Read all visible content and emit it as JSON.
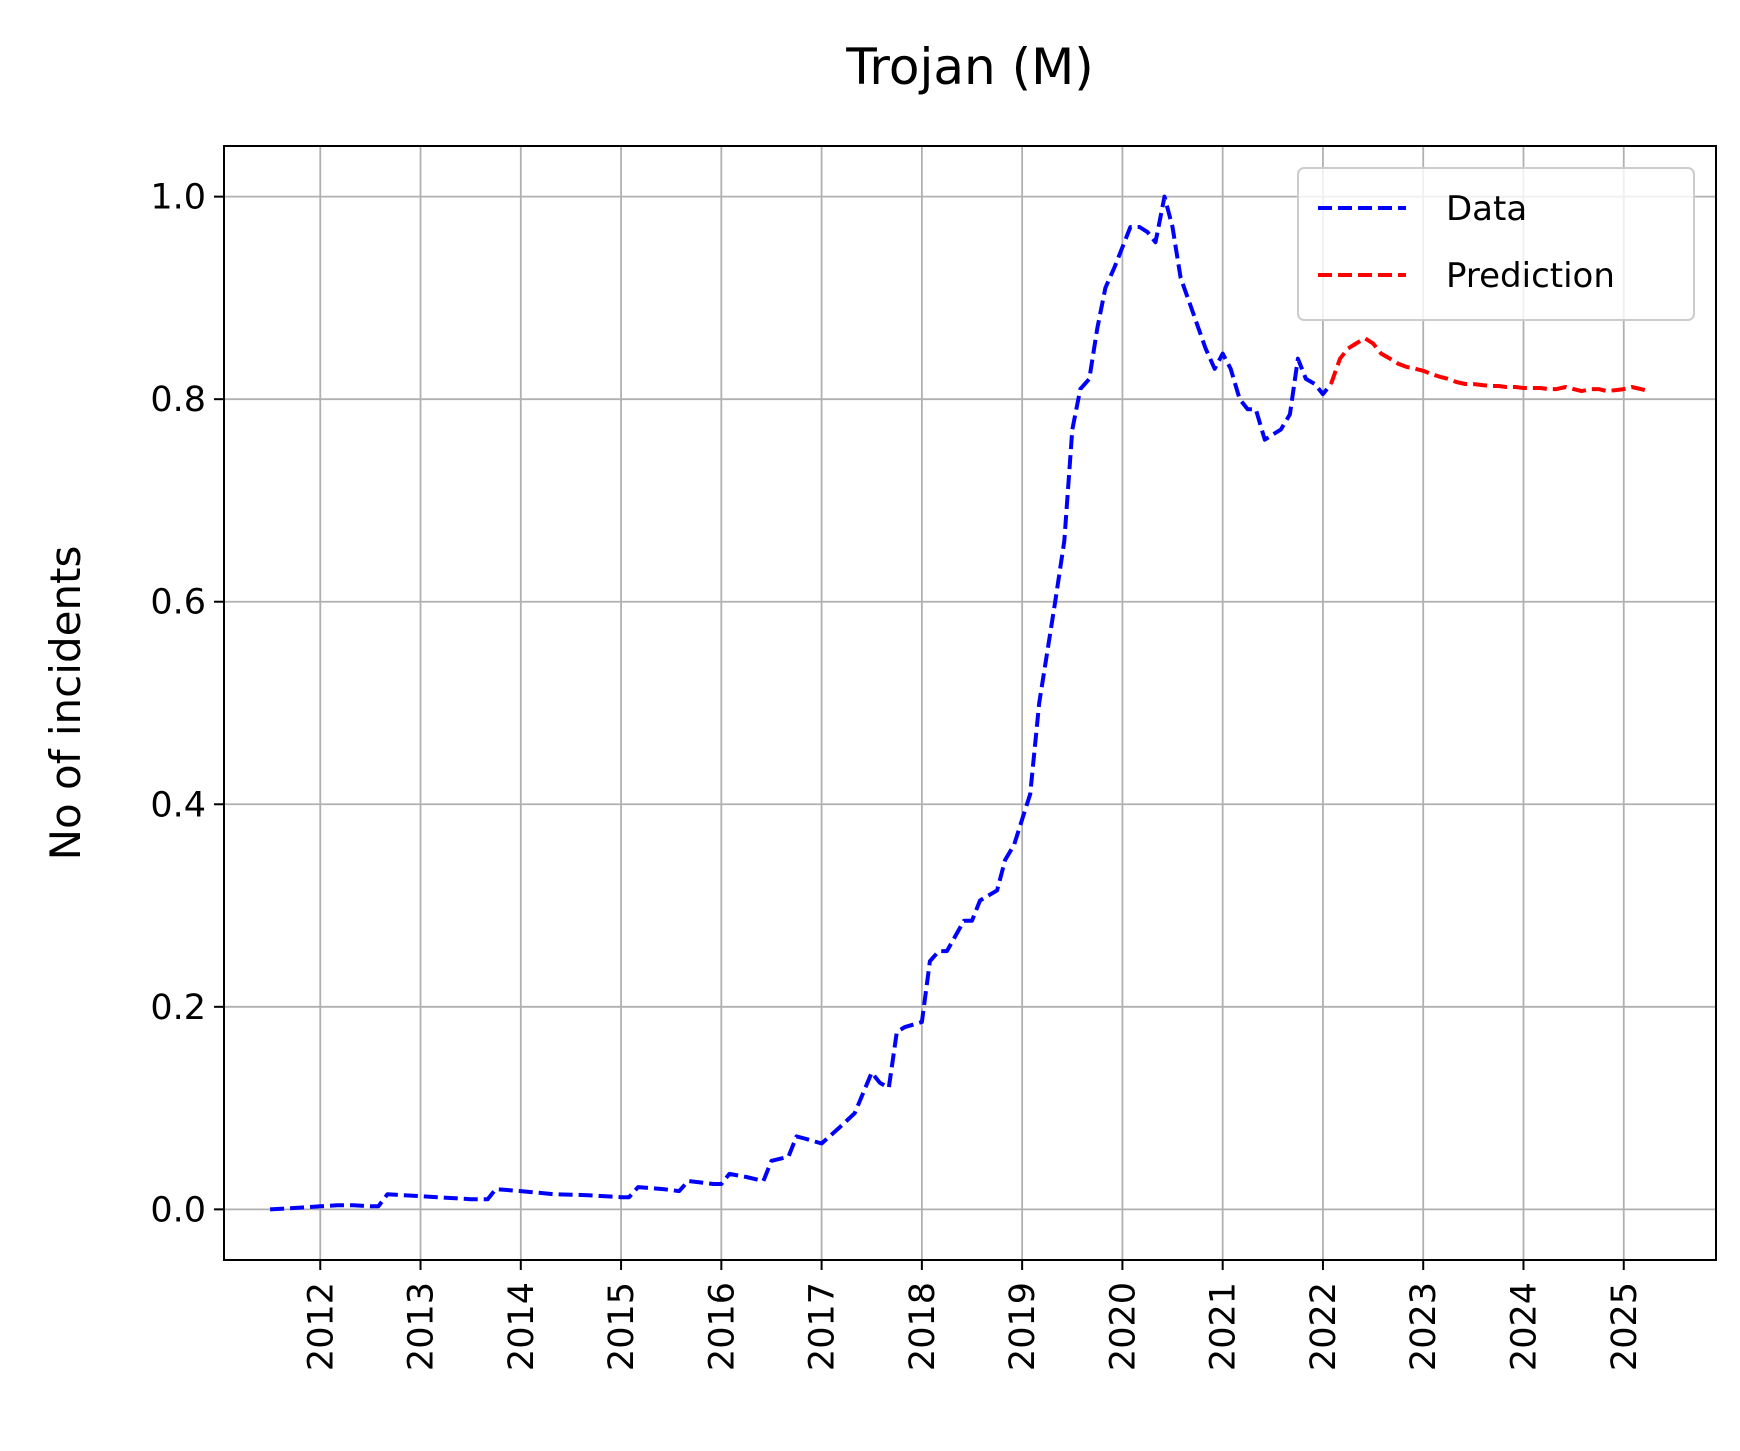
{
  "chart_data": {
    "type": "line",
    "title": "Trojan (M)",
    "xlabel": "",
    "ylabel": "No of incidents",
    "xlim": [
      2011.04,
      2025.92
    ],
    "ylim": [
      -0.05,
      1.05
    ],
    "x_ticks": [
      2012,
      2013,
      2014,
      2015,
      2016,
      2017,
      2018,
      2019,
      2020,
      2021,
      2022,
      2023,
      2024,
      2025
    ],
    "x_tick_labels": [
      "2012",
      "2013",
      "2014",
      "2015",
      "2016",
      "2017",
      "2018",
      "2019",
      "2020",
      "2021",
      "2022",
      "2023",
      "2024",
      "2025"
    ],
    "y_ticks": [
      0.0,
      0.2,
      0.4,
      0.6,
      0.8,
      1.0
    ],
    "y_tick_labels": [
      "0.0",
      "0.2",
      "0.4",
      "0.6",
      "0.8",
      "1.0"
    ],
    "grid": true,
    "legend": {
      "position": "top-right",
      "entries": [
        "Data",
        "Prediction"
      ]
    },
    "series": [
      {
        "name": "Data",
        "color": "#0000ff",
        "style": "dashed",
        "x": [
          2011.5,
          2011.67,
          2012.0,
          2012.17,
          2012.33,
          2012.5,
          2012.58,
          2012.67,
          2012.83,
          2013.17,
          2013.5,
          2013.67,
          2013.75,
          2014.0,
          2014.33,
          2014.67,
          2015.0,
          2015.08,
          2015.17,
          2015.42,
          2015.58,
          2015.67,
          2015.92,
          2016.0,
          2016.08,
          2016.25,
          2016.42,
          2016.5,
          2016.67,
          2016.75,
          2016.83,
          2017.0,
          2017.17,
          2017.33,
          2017.5,
          2017.58,
          2017.67,
          2017.75,
          2017.83,
          2018.0,
          2018.08,
          2018.17,
          2018.25,
          2018.42,
          2018.5,
          2018.58,
          2018.75,
          2018.83,
          2018.92,
          2019.0,
          2019.08,
          2019.17,
          2019.25,
          2019.33,
          2019.42,
          2019.5,
          2019.58,
          2019.67,
          2019.75,
          2019.83,
          2019.92,
          2020.0,
          2020.08,
          2020.17,
          2020.25,
          2020.33,
          2020.42,
          2020.5,
          2020.58,
          2020.67,
          2020.83,
          2020.92,
          2021.0,
          2021.08,
          2021.17,
          2021.25,
          2021.33,
          2021.42,
          2021.5,
          2021.58,
          2021.67,
          2021.75,
          2021.83,
          2021.92,
          2022.0,
          2022.08
        ],
        "y": [
          0.0,
          0.001,
          0.003,
          0.004,
          0.004,
          0.003,
          0.003,
          0.015,
          0.014,
          0.012,
          0.01,
          0.01,
          0.02,
          0.018,
          0.015,
          0.014,
          0.012,
          0.012,
          0.022,
          0.02,
          0.018,
          0.028,
          0.025,
          0.025,
          0.035,
          0.032,
          0.028,
          0.048,
          0.052,
          0.072,
          0.07,
          0.065,
          0.08,
          0.095,
          0.135,
          0.125,
          0.12,
          0.175,
          0.18,
          0.185,
          0.245,
          0.255,
          0.255,
          0.285,
          0.285,
          0.305,
          0.315,
          0.345,
          0.36,
          0.385,
          0.41,
          0.5,
          0.55,
          0.6,
          0.66,
          0.77,
          0.81,
          0.82,
          0.87,
          0.91,
          0.93,
          0.95,
          0.97,
          0.97,
          0.965,
          0.955,
          1.0,
          0.97,
          0.92,
          0.895,
          0.85,
          0.83,
          0.845,
          0.83,
          0.8,
          0.79,
          0.79,
          0.76,
          0.765,
          0.77,
          0.785,
          0.84,
          0.82,
          0.815,
          0.805,
          0.815
        ]
      },
      {
        "name": "Prediction",
        "color": "#ff0000",
        "style": "dashed",
        "x": [
          2022.08,
          2022.17,
          2022.25,
          2022.33,
          2022.42,
          2022.5,
          2022.58,
          2022.67,
          2022.75,
          2022.83,
          2022.92,
          2023.0,
          2023.08,
          2023.17,
          2023.25,
          2023.33,
          2023.42,
          2023.5,
          2023.58,
          2023.67,
          2023.75,
          2023.83,
          2023.92,
          2024.0,
          2024.08,
          2024.17,
          2024.25,
          2024.33,
          2024.42,
          2024.5,
          2024.58,
          2024.67,
          2024.75,
          2024.83,
          2024.92,
          2025.0,
          2025.08,
          2025.17,
          2025.25
        ],
        "y": [
          0.815,
          0.84,
          0.85,
          0.855,
          0.86,
          0.855,
          0.845,
          0.84,
          0.835,
          0.832,
          0.83,
          0.828,
          0.825,
          0.822,
          0.82,
          0.817,
          0.815,
          0.815,
          0.814,
          0.813,
          0.813,
          0.812,
          0.812,
          0.811,
          0.811,
          0.811,
          0.81,
          0.81,
          0.812,
          0.81,
          0.808,
          0.81,
          0.81,
          0.808,
          0.809,
          0.81,
          0.812,
          0.81,
          0.808
        ]
      }
    ]
  }
}
